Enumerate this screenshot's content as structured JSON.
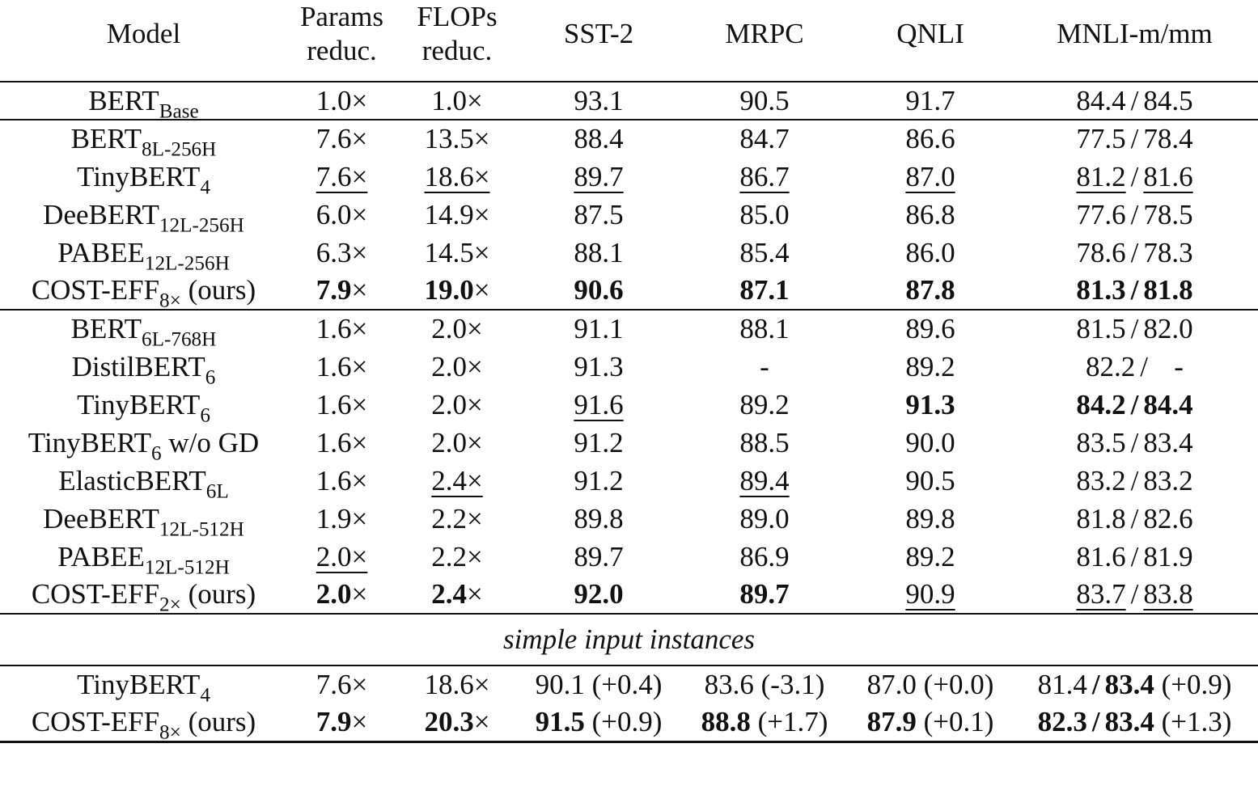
{
  "header": {
    "model": "Model",
    "params_l1": "Params",
    "params_l2": "reduc.",
    "flops_l1": "FLOPs",
    "flops_l2": "reduc.",
    "sst2": "SST-2",
    "mrpc": "MRPC",
    "qnli": "QNLI",
    "mnli": "MNLI-m/mm"
  },
  "groups": [
    [
      {
        "name": "BERT",
        "sub": "Base",
        "suffix": "",
        "params": {
          "v": "1.0×"
        },
        "flops": {
          "v": "1.0×"
        },
        "sst2": {
          "v": "93.1"
        },
        "mrpc": {
          "v": "90.5"
        },
        "qnli": {
          "v": "91.7"
        },
        "mnli_m": {
          "v": "84.4"
        },
        "mnli_mm": {
          "v": "84.5"
        }
      }
    ],
    [
      {
        "name": "BERT",
        "sub": "8L-256H",
        "suffix": "",
        "params": {
          "v": "7.6×"
        },
        "flops": {
          "v": "13.5×"
        },
        "sst2": {
          "v": "88.4"
        },
        "mrpc": {
          "v": "84.7"
        },
        "qnli": {
          "v": "86.6"
        },
        "mnli_m": {
          "v": "77.5"
        },
        "mnli_mm": {
          "v": "78.4"
        }
      },
      {
        "name": "TinyBERT",
        "sub": "4",
        "suffix": "",
        "params": {
          "v": "7.6×",
          "u": true
        },
        "flops": {
          "v": "18.6×",
          "u": true
        },
        "sst2": {
          "v": "89.7",
          "u": true
        },
        "mrpc": {
          "v": "86.7",
          "u": true
        },
        "qnli": {
          "v": "87.0",
          "u": true
        },
        "mnli_m": {
          "v": "81.2",
          "u": true
        },
        "mnli_mm": {
          "v": "81.6",
          "u": true
        }
      },
      {
        "name": "DeeBERT",
        "sub": "12L-256H",
        "suffix": "",
        "params": {
          "v": "6.0×"
        },
        "flops": {
          "v": "14.9×"
        },
        "sst2": {
          "v": "87.5"
        },
        "mrpc": {
          "v": "85.0"
        },
        "qnli": {
          "v": "86.8"
        },
        "mnli_m": {
          "v": "77.6"
        },
        "mnli_mm": {
          "v": "78.5"
        }
      },
      {
        "name": "PABEE",
        "sub": "12L-256H",
        "suffix": "",
        "params": {
          "v": "6.3×"
        },
        "flops": {
          "v": "14.5×"
        },
        "sst2": {
          "v": "88.1"
        },
        "mrpc": {
          "v": "85.4"
        },
        "qnli": {
          "v": "86.0"
        },
        "mnli_m": {
          "v": "78.6"
        },
        "mnli_mm": {
          "v": "78.3"
        }
      },
      {
        "name": "COST-EFF",
        "sub": "8×",
        "suffix": " (ours)",
        "params": {
          "v": "7.9",
          "x": "×",
          "b": true
        },
        "flops": {
          "v": "19.0",
          "x": "×",
          "b": true
        },
        "sst2": {
          "v": "90.6",
          "b": true
        },
        "mrpc": {
          "v": "87.1",
          "b": true
        },
        "qnli": {
          "v": "87.8",
          "b": true
        },
        "mnli_m": {
          "v": "81.3",
          "b": true
        },
        "mnli_mm": {
          "v": "81.8",
          "b": true
        },
        "slash_bold": true
      }
    ],
    [
      {
        "name": "BERT",
        "sub": "6L-768H",
        "suffix": "",
        "params": {
          "v": "1.6×"
        },
        "flops": {
          "v": "2.0×"
        },
        "sst2": {
          "v": "91.1"
        },
        "mrpc": {
          "v": "88.1"
        },
        "qnli": {
          "v": "89.6"
        },
        "mnli_m": {
          "v": "81.5"
        },
        "mnli_mm": {
          "v": "82.0"
        }
      },
      {
        "name": "DistilBERT",
        "sub": "6",
        "suffix": "",
        "params": {
          "v": "1.6×"
        },
        "flops": {
          "v": "2.0×"
        },
        "sst2": {
          "v": "91.3"
        },
        "mrpc": {
          "v": "-"
        },
        "qnli": {
          "v": "89.2"
        },
        "mnli_m": {
          "v": "82.2"
        },
        "mnli_mm": {
          "v": "   -"
        }
      },
      {
        "name": "TinyBERT",
        "sub": "6",
        "suffix": "",
        "params": {
          "v": "1.6×"
        },
        "flops": {
          "v": "2.0×"
        },
        "sst2": {
          "v": "91.6",
          "u": true
        },
        "mrpc": {
          "v": "89.2"
        },
        "qnli": {
          "v": "91.3",
          "b": true
        },
        "mnli_m": {
          "v": "84.2",
          "b": true
        },
        "mnli_mm": {
          "v": "84.4",
          "b": true
        },
        "slash_bold": true
      },
      {
        "name": "TinyBERT",
        "sub": "6",
        "suffix": " w/o GD",
        "params": {
          "v": "1.6×"
        },
        "flops": {
          "v": "2.0×"
        },
        "sst2": {
          "v": "91.2"
        },
        "mrpc": {
          "v": "88.5"
        },
        "qnli": {
          "v": "90.0"
        },
        "mnli_m": {
          "v": "83.5"
        },
        "mnli_mm": {
          "v": "83.4"
        }
      },
      {
        "name": "ElasticBERT",
        "sub": "6L",
        "suffix": "",
        "params": {
          "v": "1.6×"
        },
        "flops": {
          "v": "2.4×",
          "u": true
        },
        "sst2": {
          "v": "91.2"
        },
        "mrpc": {
          "v": "89.4",
          "u": true
        },
        "qnli": {
          "v": "90.5"
        },
        "mnli_m": {
          "v": "83.2"
        },
        "mnli_mm": {
          "v": "83.2"
        }
      },
      {
        "name": "DeeBERT",
        "sub": "12L-512H",
        "suffix": "",
        "params": {
          "v": "1.9×"
        },
        "flops": {
          "v": "2.2×"
        },
        "sst2": {
          "v": "89.8"
        },
        "mrpc": {
          "v": "89.0"
        },
        "qnli": {
          "v": "89.8"
        },
        "mnli_m": {
          "v": "81.8"
        },
        "mnli_mm": {
          "v": "82.6"
        }
      },
      {
        "name": "PABEE",
        "sub": "12L-512H",
        "suffix": "",
        "params": {
          "v": "2.0×",
          "u": true
        },
        "flops": {
          "v": "2.2×"
        },
        "sst2": {
          "v": "89.7"
        },
        "mrpc": {
          "v": "86.9"
        },
        "qnli": {
          "v": "89.2"
        },
        "mnli_m": {
          "v": "81.6"
        },
        "mnli_mm": {
          "v": "81.9"
        }
      },
      {
        "name": "COST-EFF",
        "sub": "2×",
        "suffix": " (ours)",
        "params": {
          "v": "2.0",
          "x": "×",
          "b": true
        },
        "flops": {
          "v": "2.4",
          "x": "×",
          "b": true
        },
        "sst2": {
          "v": "92.0",
          "b": true
        },
        "mrpc": {
          "v": "89.7",
          "b": true
        },
        "qnli": {
          "v": "90.9",
          "u": true
        },
        "mnli_m": {
          "v": "83.7",
          "u": true
        },
        "mnli_mm": {
          "v": "83.8",
          "u": true
        }
      }
    ]
  ],
  "separator_label": "simple input instances",
  "simple_rows": [
    {
      "name": "TinyBERT",
      "sub": "4",
      "suffix": "",
      "params": {
        "v": "7.6×"
      },
      "flops": {
        "v": "18.6×"
      },
      "sst2": {
        "v": "90.1",
        "d": " (+0.4)"
      },
      "mrpc": {
        "v": "83.6",
        "d": " (-3.1)"
      },
      "qnli": {
        "v": "87.0",
        "d": " (+0.0)"
      },
      "mnli_m": {
        "v": "81.4"
      },
      "mnli_mm": {
        "v": "83.4",
        "b": true,
        "d": " (+0.9)"
      },
      "slash_bold": true
    },
    {
      "name": "COST-EFF",
      "sub": "8×",
      "suffix": " (ours)",
      "params": {
        "v": "7.9",
        "x": "×",
        "b": true
      },
      "flops": {
        "v": "20.3",
        "x": "×",
        "b": true
      },
      "sst2": {
        "v": "91.5",
        "b": true,
        "d": " (+0.9)"
      },
      "mrpc": {
        "v": "88.8",
        "b": true,
        "d": " (+1.7)"
      },
      "qnli": {
        "v": "87.9",
        "b": true,
        "d": " (+0.1)"
      },
      "mnli_m": {
        "v": "82.3",
        "b": true
      },
      "mnli_mm": {
        "v": "83.4",
        "b": true,
        "d": " (+1.3)"
      },
      "slash_bold": true
    }
  ]
}
